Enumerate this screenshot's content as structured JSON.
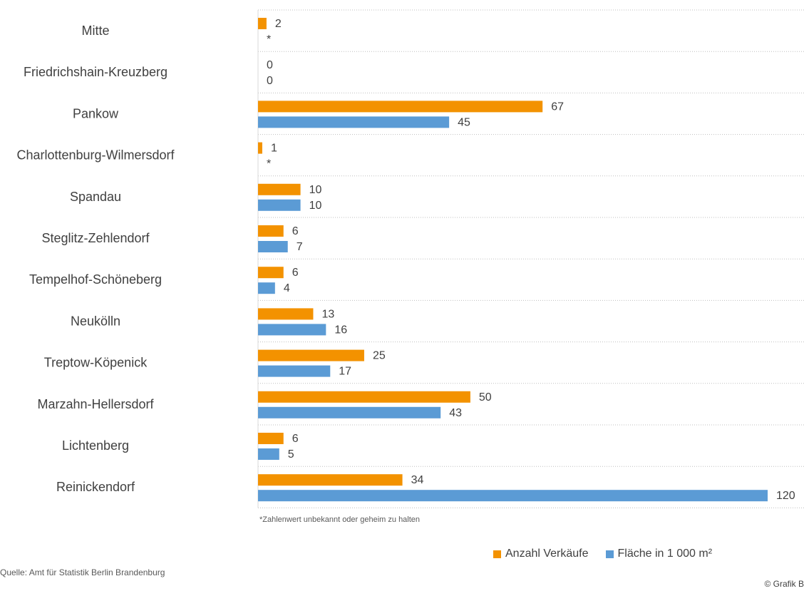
{
  "chart_data": {
    "type": "bar",
    "orientation": "horizontal",
    "categories": [
      "Mitte",
      "Friedrichshain-Kreuzberg",
      "Pankow",
      "Charlottenburg-Wilmersdorf",
      "Spandau",
      "Steglitz-Zehlendorf",
      "Tempelhof-Schöneberg",
      "Neukölln",
      "Treptow-Köpenick",
      "Marzahn-Hellersdorf",
      "Lichtenberg",
      "Reinickendorf"
    ],
    "series": [
      {
        "name": "Anzahl Verkäufe",
        "color": "#f39200",
        "values": [
          2,
          0,
          67,
          1,
          10,
          6,
          6,
          13,
          25,
          50,
          6,
          34
        ],
        "labels": [
          "2",
          "0",
          "67",
          "1",
          "10",
          "6",
          "6",
          "13",
          "25",
          "50",
          "6",
          "34"
        ]
      },
      {
        "name": "Fläche in 1 000 m²",
        "color": "#5b9bd5",
        "values": [
          null,
          0,
          45,
          null,
          10,
          7,
          4,
          16,
          17,
          43,
          5,
          120
        ],
        "labels": [
          "*",
          "0",
          "45",
          "*",
          "10",
          "7",
          "4",
          "16",
          "17",
          "43",
          "5",
          "120"
        ]
      }
    ],
    "xlim": [
      0,
      120
    ],
    "grid": true,
    "legend_position": "bottom-right",
    "footnote": "*Zahlenwert unbekannt oder geheim zu halten"
  },
  "source": "Quelle: Amt für Statistik Berlin Brandenburg",
  "credit": "© Grafik B"
}
